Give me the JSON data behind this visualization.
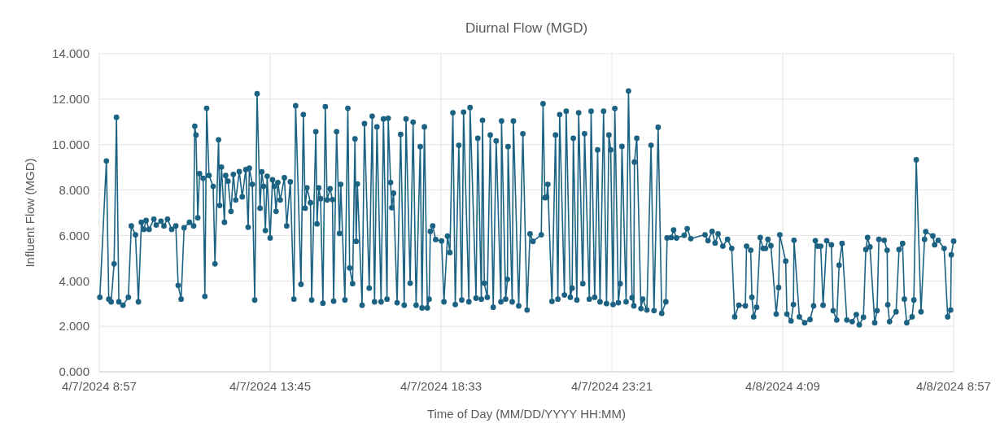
{
  "chart_data": {
    "type": "line",
    "title": "Diurnal Flow (MGD)",
    "xlabel": "Time of Day (MM/DD/YYYY HH:MM)",
    "ylabel": "Influent Flow (MGD)",
    "x": [
      "2024-04-07T08:58",
      "2024-04-07T09:09",
      "2024-04-07T09:13",
      "2024-04-07T09:17",
      "2024-04-07T09:22",
      "2024-04-07T09:26",
      "2024-04-07T09:30",
      "2024-04-07T09:37",
      "2024-04-07T09:46",
      "2024-04-07T09:51",
      "2024-04-07T09:58",
      "2024-04-07T10:03",
      "2024-04-07T10:08",
      "2024-04-07T10:12",
      "2024-04-07T10:16",
      "2024-04-07T10:21",
      "2024-04-07T10:29",
      "2024-04-07T10:33",
      "2024-04-07T10:41",
      "2024-04-07T10:46",
      "2024-04-07T10:52",
      "2024-04-07T10:59",
      "2024-04-07T11:06",
      "2024-04-07T11:10",
      "2024-04-07T11:15",
      "2024-04-07T11:20",
      "2024-04-07T11:29",
      "2024-04-07T11:36",
      "2024-04-07T11:38",
      "2024-04-07T11:40",
      "2024-04-07T11:43",
      "2024-04-07T11:46",
      "2024-04-07T11:52",
      "2024-04-07T11:55",
      "2024-04-07T11:58",
      "2024-04-07T12:02",
      "2024-04-07T12:09",
      "2024-04-07T12:12",
      "2024-04-07T12:18",
      "2024-04-07T12:20",
      "2024-04-07T12:23",
      "2024-04-07T12:28",
      "2024-04-07T12:30",
      "2024-04-07T12:34",
      "2024-04-07T12:39",
      "2024-04-07T12:43",
      "2024-04-07T12:47",
      "2024-04-07T12:53",
      "2024-04-07T12:58",
      "2024-04-07T13:04",
      "2024-04-07T13:08",
      "2024-04-07T13:10",
      "2024-04-07T13:15",
      "2024-04-07T13:19",
      "2024-04-07T13:23",
      "2024-04-07T13:28",
      "2024-04-07T13:31",
      "2024-04-07T13:34",
      "2024-04-07T13:37",
      "2024-04-07T13:40",
      "2024-04-07T13:45",
      "2024-04-07T13:49",
      "2024-04-07T13:52",
      "2024-04-07T13:55",
      "2024-04-07T13:58",
      "2024-04-07T14:02",
      "2024-04-07T14:09",
      "2024-04-07T14:13",
      "2024-04-07T14:19",
      "2024-04-07T14:25",
      "2024-04-07T14:28",
      "2024-04-07T14:37",
      "2024-04-07T14:41",
      "2024-04-07T14:44",
      "2024-04-07T14:47",
      "2024-04-07T14:53",
      "2024-04-07T14:55",
      "2024-04-07T15:02",
      "2024-04-07T15:04",
      "2024-04-07T15:07",
      "2024-04-07T15:10",
      "2024-04-07T15:14",
      "2024-04-07T15:18",
      "2024-04-07T15:21",
      "2024-04-07T15:26",
      "2024-04-07T15:30",
      "2024-04-07T15:32",
      "2024-04-07T15:37",
      "2024-04-07T15:42",
      "2024-04-07T15:44",
      "2024-04-07T15:51",
      "2024-04-07T15:56",
      "2024-04-07T15:59",
      "2024-04-07T16:04",
      "2024-04-07T16:08",
      "2024-04-07T16:10",
      "2024-04-07T16:12",
      "2024-04-07T16:20",
      "2024-04-07T16:24",
      "2024-04-07T16:32",
      "2024-04-07T16:37",
      "2024-04-07T16:41",
      "2024-04-07T16:45",
      "2024-04-07T16:52",
      "2024-04-07T16:56",
      "2024-04-07T17:02",
      "2024-04-07T17:04",
      "2024-04-07T17:08",
      "2024-04-07T17:10",
      "2024-04-07T17:13",
      "2024-04-07T17:19",
      "2024-04-07T17:25",
      "2024-04-07T17:31",
      "2024-04-07T17:34",
      "2024-04-07T17:41",
      "2024-04-07T17:46",
      "2024-04-07T17:51",
      "2024-04-07T17:58",
      "2024-04-07T18:01",
      "2024-04-07T18:05",
      "2024-04-07T18:10",
      "2024-04-07T18:13",
      "2024-04-07T18:15",
      "2024-04-07T18:19",
      "2024-04-07T18:24",
      "2024-04-07T18:34",
      "2024-04-07T18:38",
      "2024-04-07T18:44",
      "2024-04-07T18:48",
      "2024-04-07T18:53",
      "2024-04-07T18:57",
      "2024-04-07T19:03",
      "2024-04-07T19:08",
      "2024-04-07T19:11",
      "2024-04-07T19:20",
      "2024-04-07T19:22",
      "2024-04-07T19:32",
      "2024-04-07T19:35",
      "2024-04-07T19:41",
      "2024-04-07T19:43",
      "2024-04-07T19:46",
      "2024-04-07T19:51",
      "2024-04-07T19:56",
      "2024-04-07T20:01",
      "2024-04-07T20:06",
      "2024-04-07T20:14",
      "2024-04-07T20:15",
      "2024-04-07T20:22",
      "2024-04-07T20:25",
      "2024-04-07T20:26",
      "2024-04-07T20:33",
      "2024-04-07T20:35",
      "2024-04-07T20:44",
      "2024-04-07T20:51",
      "2024-04-07T20:58",
      "2024-04-07T21:03",
      "2024-04-07T21:08",
      "2024-04-07T21:22",
      "2024-04-07T21:25",
      "2024-04-07T21:28",
      "2024-04-07T21:31",
      "2024-04-07T21:33",
      "2024-04-07T21:40",
      "2024-04-07T21:46",
      "2024-04-07T21:50",
      "2024-04-07T21:53",
      "2024-04-07T22:01",
      "2024-04-07T22:04",
      "2024-04-07T22:11",
      "2024-04-07T22:14",
      "2024-04-07T22:16",
      "2024-04-07T22:22",
      "2024-04-07T22:25",
      "2024-04-07T22:32",
      "2024-04-07T22:35",
      "2024-04-07T22:43",
      "2024-04-07T22:46",
      "2024-04-07T22:52",
      "2024-04-07T22:57",
      "2024-04-07T23:01",
      "2024-04-07T23:07",
      "2024-04-07T23:12",
      "2024-04-07T23:16",
      "2024-04-07T23:19",
      "2024-04-07T23:23",
      "2024-04-07T23:26",
      "2024-04-07T23:32",
      "2024-04-07T23:35",
      "2024-04-07T23:38",
      "2024-04-07T23:45",
      "2024-04-07T23:49",
      "2024-04-07T23:55",
      "2024-04-07T23:58",
      "2024-04-07T23:59",
      "2024-04-08T00:03",
      "2024-04-08T00:10",
      "2024-04-08T00:13",
      "2024-04-08T00:20",
      "2024-04-08T00:27",
      "2024-04-08T00:32",
      "2024-04-08T00:39",
      "2024-04-08T00:45",
      "2024-04-08T00:52",
      "2024-04-08T00:54",
      "2024-04-08T01:01",
      "2024-04-08T01:05",
      "2024-04-08T01:10",
      "2024-04-08T01:23",
      "2024-04-08T01:28",
      "2024-04-08T01:34",
      "2024-04-08T01:58",
      "2024-04-08T02:03",
      "2024-04-08T02:10",
      "2024-04-08T02:15",
      "2024-04-08T02:20",
      "2024-04-08T02:28",
      "2024-04-08T02:36",
      "2024-04-08T02:43",
      "2024-04-08T02:48",
      "2024-04-08T02:55",
      "2024-04-08T03:06",
      "2024-04-08T03:08",
      "2024-04-08T03:15",
      "2024-04-08T03:17",
      "2024-04-08T03:20",
      "2024-04-08T03:25",
      "2024-04-08T03:31",
      "2024-04-08T03:36",
      "2024-04-08T03:40",
      "2024-04-08T03:44",
      "2024-04-08T03:49",
      "2024-04-08T03:58",
      "2024-04-08T04:02",
      "2024-04-08T04:04",
      "2024-04-08T04:14",
      "2024-04-08T04:16",
      "2024-04-08T04:23",
      "2024-04-08T04:27",
      "2024-04-08T04:28",
      "2024-04-08T04:37",
      "2024-04-08T04:46",
      "2024-04-08T04:55",
      "2024-04-08T05:01",
      "2024-04-08T05:04",
      "2024-04-08T05:08",
      "2024-04-08T05:13",
      "2024-04-08T05:17",
      "2024-04-08T05:23",
      "2024-04-08T05:31",
      "2024-04-08T05:34",
      "2024-04-08T05:40",
      "2024-04-08T05:44",
      "2024-04-08T05:49",
      "2024-04-08T05:57",
      "2024-04-08T06:06",
      "2024-04-08T06:13",
      "2024-04-08T06:18",
      "2024-04-08T06:25",
      "2024-04-08T06:29",
      "2024-04-08T06:32",
      "2024-04-08T06:36",
      "2024-04-08T06:44",
      "2024-04-08T06:48",
      "2024-04-08T06:51",
      "2024-04-08T07:00",
      "2024-04-08T07:05",
      "2024-04-08T07:06",
      "2024-04-08T07:09",
      "2024-04-08T07:20",
      "2024-04-08T07:25",
      "2024-04-08T07:31",
      "2024-04-08T07:34",
      "2024-04-08T07:38",
      "2024-04-08T07:47",
      "2024-04-08T07:50",
      "2024-04-08T07:54",
      "2024-04-08T08:02",
      "2024-04-08T08:08",
      "2024-04-08T08:10",
      "2024-04-08T08:22",
      "2024-04-08T08:25",
      "2024-04-08T08:31",
      "2024-04-08T08:41",
      "2024-04-08T08:47",
      "2024-04-08T08:52",
      "2024-04-08T08:53",
      "2024-04-08T08:57"
    ],
    "series": [
      {
        "color": "#1b6283",
        "values": [
          3.28,
          9.28,
          3.2,
          3.08,
          4.75,
          11.2,
          3.08,
          2.93,
          3.28,
          6.42,
          6.03,
          3.08,
          6.58,
          6.27,
          6.66,
          6.27,
          6.72,
          6.46,
          6.63,
          6.42,
          6.72,
          6.27,
          6.42,
          3.8,
          3.2,
          6.34,
          6.58,
          6.42,
          10.81,
          10.42,
          6.78,
          8.72,
          8.52,
          3.32,
          11.6,
          8.64,
          8.16,
          4.75,
          10.21,
          7.32,
          9.01,
          6.58,
          8.64,
          8.39,
          7.06,
          8.69,
          7.56,
          8.81,
          7.7,
          8.9,
          6.36,
          8.96,
          8.25,
          3.16,
          12.24,
          7.2,
          8.8,
          8.16,
          6.22,
          8.61,
          5.89,
          8.45,
          8.16,
          7.06,
          8.33,
          7.56,
          8.54,
          6.42,
          8.36,
          3.2,
          11.71,
          3.85,
          11.32,
          7.2,
          8.1,
          7.44,
          3.16,
          10.57,
          6.51,
          8.1,
          7.62,
          3.02,
          11.67,
          7.56,
          8.06,
          7.58,
          3.11,
          10.57,
          6.09,
          8.25,
          3.16,
          11.6,
          4.57,
          3.88,
          10.25,
          5.74,
          8.27,
          2.93,
          10.92,
          3.68,
          11.25,
          3.08,
          10.78,
          3.08,
          11.13,
          3.2,
          11.16,
          8.33,
          7.22,
          7.86,
          3.04,
          10.45,
          2.93,
          11.13,
          3.9,
          10.99,
          2.93,
          9.91,
          2.81,
          10.78,
          2.81,
          3.2,
          6.18,
          6.42,
          5.82,
          5.76,
          3.08,
          5.97,
          5.25,
          11.4,
          2.96,
          9.97,
          3.16,
          11.43,
          3.08,
          11.63,
          3.24,
          10.28,
          3.2,
          11.07,
          3.9,
          3.28,
          10.42,
          2.84,
          10.16,
          3.08,
          11.04,
          3.2,
          4.07,
          9.91,
          3.08,
          11.04,
          2.9,
          10.48,
          2.72,
          6.07,
          5.74,
          6.03,
          11.8,
          7.66,
          7.68,
          8.25,
          3.1,
          10.42,
          3.2,
          11.32,
          3.38,
          11.47,
          3.28,
          3.68,
          10.28,
          3.16,
          11.4,
          3.88,
          10.48,
          3.2,
          11.47,
          3.28,
          9.77,
          3.08,
          11.47,
          3.0,
          10.42,
          9.77,
          2.96,
          11.59,
          3.04,
          3.88,
          9.92,
          3.08,
          12.36,
          3.26,
          2.9,
          9.23,
          10.28,
          2.78,
          3.2,
          2.72,
          9.97,
          2.69,
          10.76,
          2.57,
          3.08,
          5.89,
          5.91,
          6.24,
          5.89,
          6.01,
          6.3,
          5.86,
          6.03,
          5.77,
          6.18,
          5.67,
          6.07,
          5.53,
          5.83,
          5.43,
          2.42,
          2.93,
          2.9,
          5.53,
          5.35,
          3.28,
          2.42,
          2.84,
          5.91,
          5.43,
          5.43,
          5.83,
          5.55,
          2.54,
          3.71,
          6.03,
          4.87,
          2.54,
          2.24,
          2.96,
          5.79,
          2.42,
          2.16,
          2.3,
          2.9,
          5.77,
          5.53,
          5.53,
          2.93,
          5.77,
          5.59,
          2.69,
          2.28,
          4.69,
          5.65,
          2.28,
          2.21,
          2.52,
          2.07,
          2.4,
          5.38,
          5.91,
          5.5,
          2.16,
          2.69,
          5.83,
          5.79,
          5.35,
          2.95,
          2.21,
          2.64,
          5.38,
          5.65,
          3.2,
          2.16,
          2.42,
          3.16,
          9.33,
          2.64,
          5.83,
          6.17,
          5.98,
          5.59,
          5.79,
          5.43,
          2.42,
          2.72,
          5.15,
          5.75
        ]
      }
    ],
    "xlim": [
      "2024-04-07T08:57",
      "2024-04-08T08:57"
    ],
    "xticks": [
      {
        "value": "2024-04-07T08:57",
        "label": "4/7/2024 8:57"
      },
      {
        "value": "2024-04-07T13:45",
        "label": "4/7/2024 13:45"
      },
      {
        "value": "2024-04-07T18:33",
        "label": "4/7/2024 18:33"
      },
      {
        "value": "2024-04-07T23:21",
        "label": "4/7/2024 23:21"
      },
      {
        "value": "2024-04-08T04:09",
        "label": "4/8/2024 4:09"
      },
      {
        "value": "2024-04-08T08:57",
        "label": "4/8/2024 8:57"
      }
    ],
    "ylim": [
      0,
      14
    ],
    "yticks": [
      {
        "value": 0,
        "label": "0.000"
      },
      {
        "value": 2,
        "label": "2.000"
      },
      {
        "value": 4,
        "label": "4.000"
      },
      {
        "value": 6,
        "label": "6.000"
      },
      {
        "value": 8,
        "label": "8.000"
      },
      {
        "value": 10,
        "label": "10.000"
      },
      {
        "value": 12,
        "label": "12.000"
      },
      {
        "value": 14,
        "label": "14.000"
      }
    ],
    "grid": true,
    "marker": "circle",
    "line_style": "solid"
  }
}
